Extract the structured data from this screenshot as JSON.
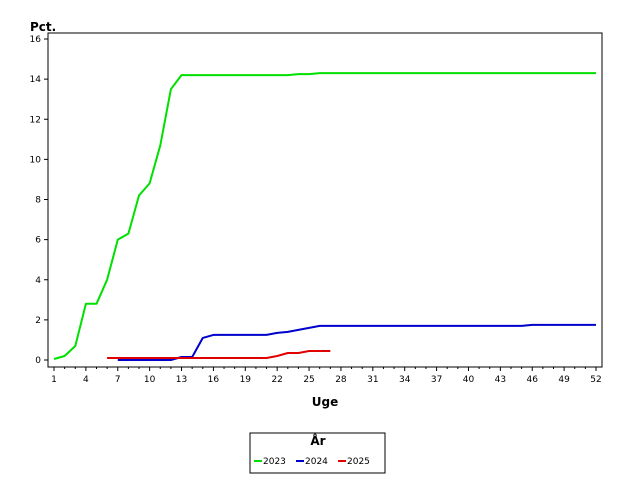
{
  "chart_data": {
    "type": "line",
    "xlabel": "Uge",
    "ylabel": "Pct.",
    "xlim": [
      1,
      52
    ],
    "ylim": [
      0,
      16
    ],
    "x_ticks": [
      1,
      4,
      7,
      10,
      13,
      16,
      19,
      22,
      25,
      28,
      31,
      34,
      37,
      40,
      43,
      46,
      49,
      52
    ],
    "y_ticks": [
      0,
      2,
      4,
      6,
      8,
      10,
      12,
      14,
      16
    ],
    "grid": false,
    "legend": {
      "title": "År",
      "placement": "bottom-center"
    },
    "series": [
      {
        "name": "2023",
        "color": "#00e000",
        "x": [
          1,
          2,
          3,
          4,
          5,
          6,
          7,
          8,
          9,
          10,
          11,
          12,
          13,
          14,
          15,
          16,
          17,
          18,
          19,
          20,
          21,
          22,
          23,
          24,
          25,
          26,
          27,
          28,
          29,
          30,
          31,
          32,
          33,
          34,
          35,
          36,
          37,
          38,
          39,
          40,
          41,
          42,
          43,
          44,
          45,
          46,
          47,
          48,
          49,
          50,
          51,
          52
        ],
        "values": [
          0.05,
          0.2,
          0.7,
          2.8,
          2.8,
          4.0,
          6.0,
          6.3,
          8.2,
          8.8,
          10.7,
          13.5,
          14.2,
          14.2,
          14.2,
          14.2,
          14.2,
          14.2,
          14.2,
          14.2,
          14.2,
          14.2,
          14.2,
          14.25,
          14.25,
          14.3,
          14.3,
          14.3,
          14.3,
          14.3,
          14.3,
          14.3,
          14.3,
          14.3,
          14.3,
          14.3,
          14.3,
          14.3,
          14.3,
          14.3,
          14.3,
          14.3,
          14.3,
          14.3,
          14.3,
          14.3,
          14.3,
          14.3,
          14.3,
          14.3,
          14.3,
          14.3
        ]
      },
      {
        "name": "2024",
        "color": "#0000cc",
        "x": [
          7,
          8,
          9,
          10,
          11,
          12,
          13,
          14,
          15,
          16,
          17,
          18,
          19,
          20,
          21,
          22,
          23,
          24,
          25,
          26,
          27,
          28,
          29,
          30,
          31,
          32,
          33,
          34,
          35,
          36,
          37,
          38,
          39,
          40,
          41,
          42,
          43,
          44,
          45,
          46,
          47,
          48,
          49,
          50,
          51,
          52
        ],
        "values": [
          0.0,
          0.0,
          0.0,
          0.0,
          0.0,
          0.0,
          0.15,
          0.15,
          1.1,
          1.25,
          1.25,
          1.25,
          1.25,
          1.25,
          1.25,
          1.35,
          1.4,
          1.5,
          1.6,
          1.7,
          1.7,
          1.7,
          1.7,
          1.7,
          1.7,
          1.7,
          1.7,
          1.7,
          1.7,
          1.7,
          1.7,
          1.7,
          1.7,
          1.7,
          1.7,
          1.7,
          1.7,
          1.7,
          1.7,
          1.75,
          1.75,
          1.75,
          1.75,
          1.75,
          1.75,
          1.75
        ]
      },
      {
        "name": "2025",
        "color": "#e00000",
        "x": [
          6,
          7,
          8,
          9,
          10,
          11,
          12,
          13,
          14,
          15,
          16,
          17,
          18,
          19,
          20,
          21,
          22,
          23,
          24,
          25,
          26,
          27
        ],
        "values": [
          0.1,
          0.1,
          0.1,
          0.1,
          0.1,
          0.1,
          0.1,
          0.1,
          0.1,
          0.1,
          0.1,
          0.1,
          0.1,
          0.1,
          0.1,
          0.1,
          0.2,
          0.35,
          0.35,
          0.45,
          0.45,
          0.45
        ]
      }
    ]
  }
}
